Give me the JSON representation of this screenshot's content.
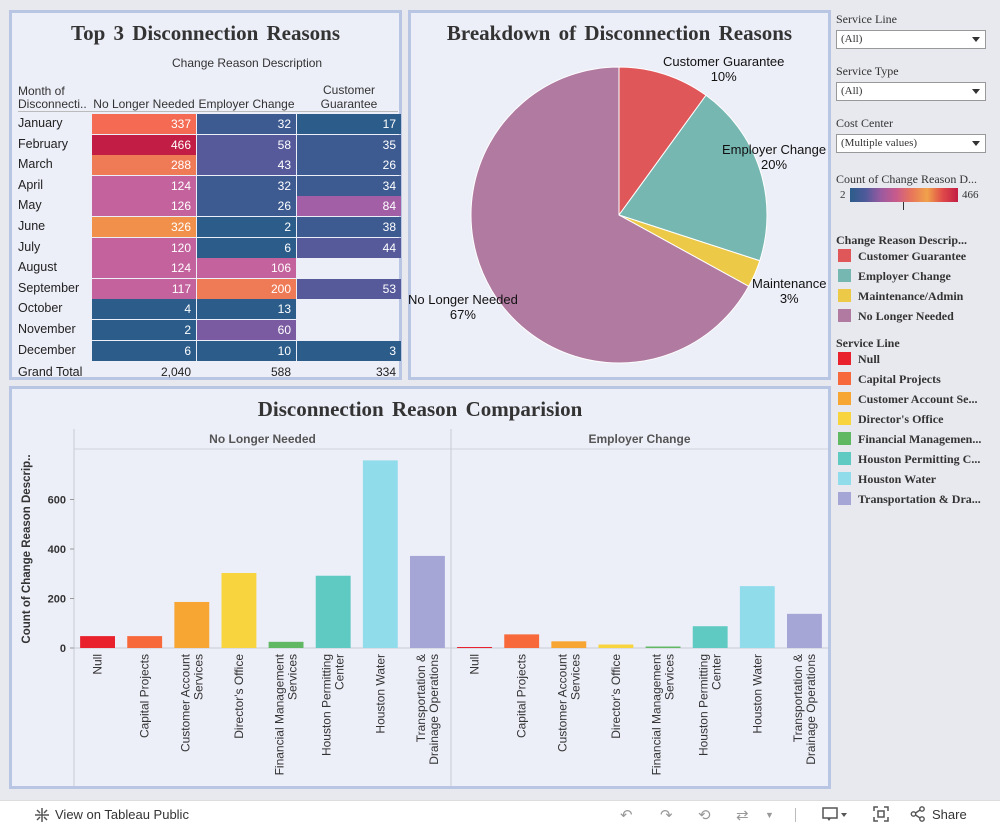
{
  "table": {
    "title": "Top 3 Disconnection Reasons",
    "column_group_header": "Change Reason Description",
    "row_header": [
      "Month of",
      "Disconnecti.."
    ],
    "columns": [
      "No Longer Needed",
      "Employer Change",
      "Customer Guarantee"
    ],
    "column_header_lines": [
      [
        "No Longer Needed"
      ],
      [
        "Employer Change"
      ],
      [
        "Customer",
        "Guarantee"
      ]
    ],
    "rows": [
      {
        "month": "January",
        "values": [
          337,
          32,
          17
        ],
        "labels": [
          "337",
          "32",
          "17"
        ]
      },
      {
        "month": "February",
        "values": [
          466,
          58,
          35
        ],
        "labels": [
          "466",
          "58",
          "35"
        ]
      },
      {
        "month": "March",
        "values": [
          288,
          43,
          26
        ],
        "labels": [
          "288",
          "43",
          "26"
        ]
      },
      {
        "month": "April",
        "values": [
          124,
          32,
          34
        ],
        "labels": [
          "124",
          "32",
          "34"
        ]
      },
      {
        "month": "May",
        "values": [
          126,
          26,
          84
        ],
        "labels": [
          "126",
          "26",
          "84"
        ]
      },
      {
        "month": "June",
        "values": [
          326,
          2,
          38
        ],
        "labels": [
          "326",
          "2",
          "38"
        ]
      },
      {
        "month": "July",
        "values": [
          120,
          6,
          44
        ],
        "labels": [
          "120",
          "6",
          "44"
        ]
      },
      {
        "month": "August",
        "values": [
          124,
          106,
          null
        ],
        "labels": [
          "124",
          "106",
          ""
        ]
      },
      {
        "month": "September",
        "values": [
          117,
          200,
          53
        ],
        "labels": [
          "117",
          "200",
          "53"
        ]
      },
      {
        "month": "October",
        "values": [
          4,
          13,
          null
        ],
        "labels": [
          "4",
          "13",
          ""
        ]
      },
      {
        "month": "November",
        "values": [
          2,
          60,
          null
        ],
        "labels": [
          "2",
          "60",
          ""
        ]
      },
      {
        "month": "December",
        "values": [
          6,
          10,
          3
        ],
        "labels": [
          "6",
          "10",
          "3"
        ]
      }
    ],
    "grand_total": {
      "label": "Grand Total",
      "values": [
        "2,040",
        "588",
        "334"
      ]
    }
  },
  "pie": {
    "title": "Breakdown of Disconnection Reasons",
    "slices": [
      {
        "name": "Customer Guarantee",
        "percent": 10,
        "label": "Customer Guarantee",
        "pct_label": "10%",
        "color": "#e05759"
      },
      {
        "name": "Employer Change",
        "percent": 20,
        "label": "Employer Change",
        "pct_label": "20%",
        "color": "#76b7b2"
      },
      {
        "name": "Maintenance",
        "percent": 3,
        "label": "Maintenance",
        "pct_label": "3%",
        "color": "#edc948"
      },
      {
        "name": "No Longer Needed",
        "percent": 67,
        "label": "No Longer Needed",
        "pct_label": "67%",
        "color": "#b07aa1"
      }
    ]
  },
  "chart_data": {
    "type": "bar",
    "title": "Disconnection Reason Comparision",
    "ylabel": "Count of Change Reason Descrip..",
    "ylim": [
      0,
      800
    ],
    "yticks": [
      0,
      200,
      400,
      600
    ],
    "categories": [
      "Null",
      "Capital Projects",
      "Customer Account Services",
      "Director's Office",
      "Financial Management Services",
      "Houston Permitting Center",
      "Houston Water",
      "Transportation & Drainage Operations"
    ],
    "category_label_lines": [
      [
        "Null"
      ],
      [
        "Capital Projects"
      ],
      [
        "Customer Account",
        "Services"
      ],
      [
        "Director's Office"
      ],
      [
        "Financial Management",
        "Services"
      ],
      [
        "Houston Permitting",
        "Center"
      ],
      [
        "Houston Water"
      ],
      [
        "Transportation &",
        "Drainage Operations"
      ]
    ],
    "colors": [
      "#e8212c",
      "#f7683a",
      "#f7a533",
      "#f8d43e",
      "#60b863",
      "#5ecac2",
      "#90dceb",
      "#a5a5d6"
    ],
    "series": [
      {
        "name": "No Longer Needed",
        "values": [
          48,
          48,
          186,
          303,
          25,
          292,
          758,
          372
        ]
      },
      {
        "name": "Employer Change",
        "values": [
          4,
          55,
          27,
          14,
          6,
          88,
          250,
          138
        ]
      }
    ]
  },
  "sidebar": {
    "filters": [
      {
        "label": "Service Line",
        "value": "(All)"
      },
      {
        "label": "Service Type",
        "value": "(All)"
      },
      {
        "label": "Cost Center",
        "value": "(Multiple values)"
      }
    ],
    "color_scale": {
      "title": "Count of Change Reason D...",
      "min": "2",
      "max": "466"
    },
    "reason_legend": {
      "title": "Change Reason Descrip...",
      "items": [
        {
          "label": "Customer Guarantee",
          "color": "#e05759"
        },
        {
          "label": "Employer Change",
          "color": "#76b7b2"
        },
        {
          "label": "Maintenance/Admin",
          "color": "#edc948"
        },
        {
          "label": "No Longer Needed",
          "color": "#b07aa1"
        }
      ]
    },
    "service_legend": {
      "title": "Service Line",
      "items": [
        {
          "label": "Null",
          "color": "#e8212c"
        },
        {
          "label": "Capital Projects",
          "color": "#f7683a"
        },
        {
          "label": "Customer Account Se...",
          "color": "#f7a533"
        },
        {
          "label": "Director's Office",
          "color": "#f8d43e"
        },
        {
          "label": "Financial Managemen...",
          "color": "#60b863"
        },
        {
          "label": "Houston Permitting C...",
          "color": "#5ecac2"
        },
        {
          "label": "Houston Water",
          "color": "#90dceb"
        },
        {
          "label": "Transportation & Dra...",
          "color": "#a5a5d6"
        }
      ]
    }
  },
  "footer": {
    "view_label": "View on Tableau Public",
    "share_label": "Share"
  }
}
